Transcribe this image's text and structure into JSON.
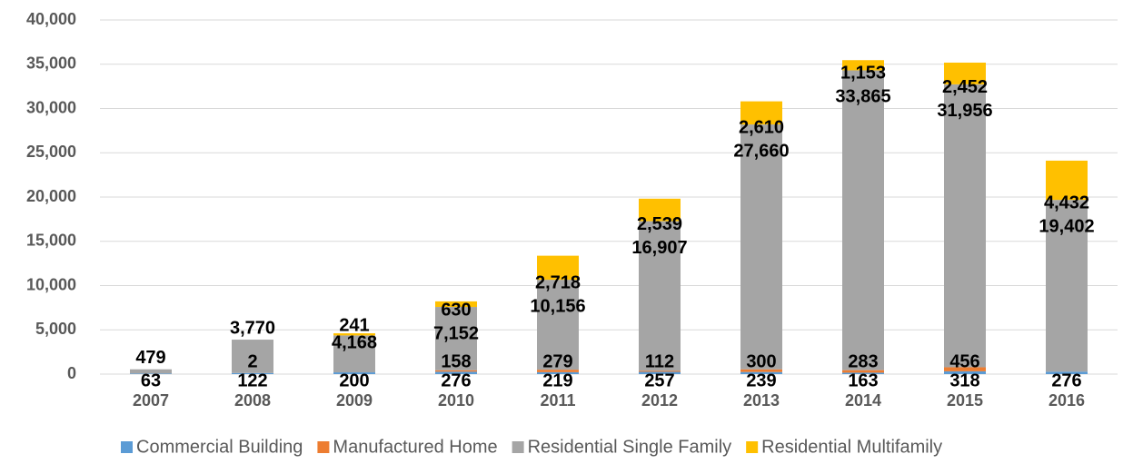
{
  "chart_data": {
    "type": "bar",
    "stacked": true,
    "categories": [
      "2007",
      "2008",
      "2009",
      "2010",
      "2011",
      "2012",
      "2013",
      "2014",
      "2015",
      "2016"
    ],
    "ylim": [
      0,
      40000
    ],
    "yticks": [
      0,
      {
        "value": 5000,
        "label": "5,000"
      },
      {
        "value": 10000,
        "label": "10,000"
      },
      {
        "value": 15000,
        "label": "15,000"
      },
      {
        "value": 20000,
        "label": "20,000"
      },
      {
        "value": 25000,
        "label": "25,000"
      },
      {
        "value": 30000,
        "label": "30,000"
      },
      {
        "value": 35000,
        "label": "35,000"
      },
      {
        "value": 40000,
        "label": "40,000"
      }
    ],
    "grid": true,
    "legend": "bottom",
    "series": [
      {
        "name": "Commercial Building",
        "color": "#5b9bd5",
        "values": [
          63,
          122,
          200,
          276,
          219,
          257,
          239,
          163,
          318,
          276
        ]
      },
      {
        "name": "Manufactured Home",
        "color": "#ed7d31",
        "values": [
          null,
          2,
          null,
          158,
          279,
          112,
          300,
          283,
          456,
          null
        ]
      },
      {
        "name": "Residential Single Family",
        "color": "#a5a5a5",
        "values": [
          479,
          3770,
          4168,
          7152,
          10156,
          16907,
          27660,
          33865,
          31956,
          19402
        ],
        "value_labels": [
          "479",
          "3,770",
          "4,168",
          "7,152",
          "10,156",
          "16,907",
          "27,660",
          "33,865",
          "31,956",
          "19,402"
        ]
      },
      {
        "name": "Residential Multifamily",
        "color": "#ffc000",
        "values": [
          null,
          null,
          241,
          630,
          2718,
          2539,
          2610,
          1153,
          2452,
          4432
        ],
        "value_labels": [
          null,
          null,
          "241",
          "630",
          "2,718",
          "2,539",
          "2,610",
          "1,153",
          "2,452",
          "4,432"
        ]
      }
    ]
  }
}
